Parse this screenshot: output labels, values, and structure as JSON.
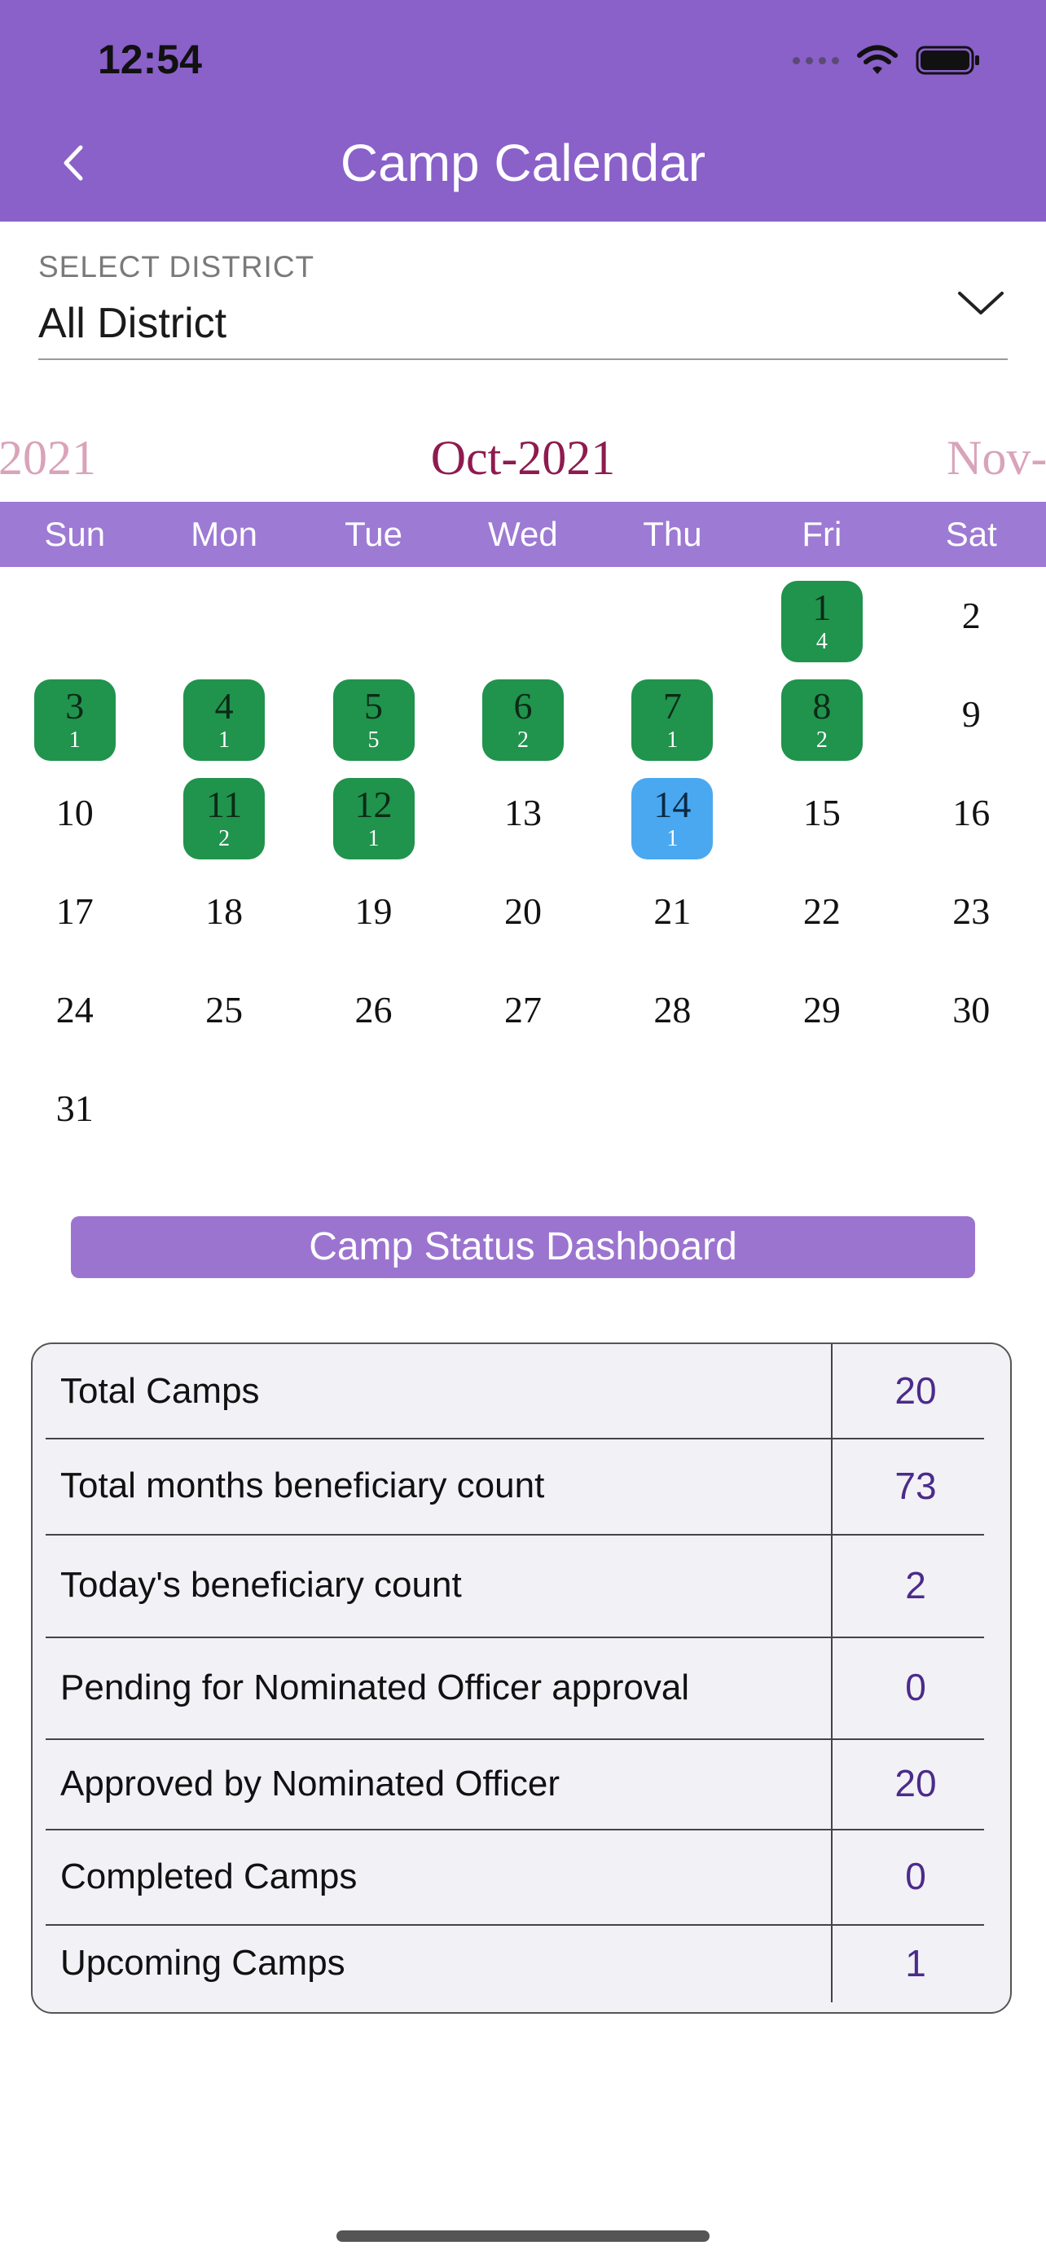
{
  "status_bar": {
    "time": "12:54"
  },
  "header": {
    "title": "Camp Calendar",
    "back_icon": "chevron-left-icon"
  },
  "district": {
    "label": "SELECT DISTRICT",
    "value": "All District"
  },
  "calendar": {
    "prev_month": "2021",
    "current_month": "Oct-2021",
    "next_month": "Nov-",
    "weekdays": [
      "Sun",
      "Mon",
      "Tue",
      "Wed",
      "Thu",
      "Fri",
      "Sat"
    ],
    "weeks": [
      [
        {},
        {},
        {},
        {},
        {},
        {
          "d": "1",
          "c": "4",
          "s": "has"
        },
        {
          "d": "2"
        }
      ],
      [
        {
          "d": "3",
          "c": "1",
          "s": "has"
        },
        {
          "d": "4",
          "c": "1",
          "s": "has"
        },
        {
          "d": "5",
          "c": "5",
          "s": "has"
        },
        {
          "d": "6",
          "c": "2",
          "s": "has"
        },
        {
          "d": "7",
          "c": "1",
          "s": "has"
        },
        {
          "d": "8",
          "c": "2",
          "s": "has"
        },
        {
          "d": "9"
        }
      ],
      [
        {
          "d": "10"
        },
        {
          "d": "11",
          "c": "2",
          "s": "has"
        },
        {
          "d": "12",
          "c": "1",
          "s": "has"
        },
        {
          "d": "13"
        },
        {
          "d": "14",
          "c": "1",
          "s": "today"
        },
        {
          "d": "15"
        },
        {
          "d": "16"
        }
      ],
      [
        {
          "d": "17"
        },
        {
          "d": "18"
        },
        {
          "d": "19"
        },
        {
          "d": "20"
        },
        {
          "d": "21"
        },
        {
          "d": "22"
        },
        {
          "d": "23"
        }
      ],
      [
        {
          "d": "24"
        },
        {
          "d": "25"
        },
        {
          "d": "26"
        },
        {
          "d": "27"
        },
        {
          "d": "28"
        },
        {
          "d": "29"
        },
        {
          "d": "30"
        }
      ],
      [
        {
          "d": "31"
        },
        {},
        {},
        {},
        {},
        {},
        {}
      ]
    ],
    "colors": {
      "camp": "#20934d",
      "today": "#4aa8f0"
    }
  },
  "dashboard": {
    "title": "Camp Status Dashboard",
    "rows": [
      {
        "label": "Total Camps",
        "value": "20"
      },
      {
        "label": "Total months beneficiary count",
        "value": "73"
      },
      {
        "label": "Today's beneficiary count",
        "value": "2"
      },
      {
        "label": "Pending for Nominated Officer approval",
        "value": "0"
      },
      {
        "label": "Approved by Nominated Officer",
        "value": "20"
      },
      {
        "label": "Completed Camps",
        "value": "0"
      },
      {
        "label": "Upcoming Camps",
        "value": "1"
      }
    ]
  },
  "theme": {
    "header": "#8a60c9",
    "accent_value": "#4b2b8a",
    "month_current": "#8e1b4f"
  }
}
